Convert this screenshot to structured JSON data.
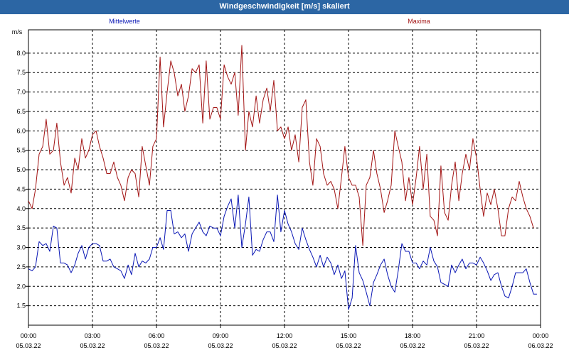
{
  "window": {
    "title": "Windgeschwindigkeit [m/s] skaliert"
  },
  "colors": {
    "titlebar": "#2c66a4",
    "mean_series": "#0a17b5",
    "max_series": "#a31515"
  },
  "chart_data": {
    "type": "line",
    "title": "Windgeschwindigkeit [m/s] skaliert",
    "ylabel": "m/s",
    "xlabel": "",
    "ylim": [
      1.0,
      8.6
    ],
    "yticks": [
      1.5,
      2.0,
      2.5,
      3.0,
      3.5,
      4.0,
      4.5,
      5.0,
      5.5,
      6.0,
      6.5,
      7.0,
      7.5,
      8.0
    ],
    "ytick_labels": [
      "1.5",
      "2.0",
      "2.5",
      "3.0",
      "3.5",
      "4.0",
      "4.5",
      "5.0",
      "5.5",
      "6.0",
      "6.5",
      "7.0",
      "7.5",
      "8.0"
    ],
    "xlim": [
      "05.03.22 00:00",
      "06.03.22 00:00"
    ],
    "xticks": [
      {
        "time": "00:00",
        "date": "05.03.22"
      },
      {
        "time": "03:00",
        "date": "05.03.22"
      },
      {
        "time": "06:00",
        "date": "05.03.22"
      },
      {
        "time": "09:00",
        "date": "05.03.22"
      },
      {
        "time": "12:00",
        "date": "05.03.22"
      },
      {
        "time": "15:00",
        "date": "05.03.22"
      },
      {
        "time": "18:00",
        "date": "05.03.22"
      },
      {
        "time": "21:00",
        "date": "05.03.22"
      },
      {
        "time": "00:00",
        "date": "06.03.22"
      }
    ],
    "grid": true,
    "x_hours": [
      0.0,
      0.17,
      0.33,
      0.5,
      0.67,
      0.83,
      1.0,
      1.17,
      1.33,
      1.5,
      1.67,
      1.83,
      2.0,
      2.17,
      2.33,
      2.5,
      2.67,
      2.83,
      3.0,
      3.17,
      3.33,
      3.5,
      3.67,
      3.83,
      4.0,
      4.17,
      4.33,
      4.5,
      4.67,
      4.83,
      5.0,
      5.17,
      5.33,
      5.5,
      5.67,
      5.83,
      6.0,
      6.17,
      6.33,
      6.5,
      6.67,
      6.83,
      7.0,
      7.17,
      7.33,
      7.5,
      7.67,
      7.83,
      8.0,
      8.17,
      8.33,
      8.5,
      8.67,
      8.83,
      9.0,
      9.17,
      9.33,
      9.5,
      9.67,
      9.83,
      10.0,
      10.17,
      10.33,
      10.5,
      10.67,
      10.83,
      11.0,
      11.17,
      11.33,
      11.5,
      11.67,
      11.83,
      12.0,
      12.17,
      12.33,
      12.5,
      12.67,
      12.83,
      13.0,
      13.17,
      13.33,
      13.5,
      13.67,
      13.83,
      14.0,
      14.17,
      14.33,
      14.5,
      14.67,
      14.83,
      15.0,
      15.17,
      15.33,
      15.5,
      15.67,
      15.83,
      16.0,
      16.17,
      16.33,
      16.5,
      16.67,
      16.83,
      17.0,
      17.17,
      17.33,
      17.5,
      17.67,
      17.83,
      18.0,
      18.17,
      18.33,
      18.5,
      18.67,
      18.83,
      19.0,
      19.17,
      19.33,
      19.5,
      19.67,
      19.83,
      20.0,
      20.17,
      20.33,
      20.5,
      20.67,
      20.83,
      21.0,
      21.17,
      21.33,
      21.5,
      21.67,
      21.83,
      22.0,
      22.17,
      22.33,
      22.5,
      22.67,
      22.83,
      23.0,
      23.17,
      23.33,
      23.5,
      23.67,
      23.83,
      24.0
    ],
    "series": [
      {
        "name": "Mittelwerte",
        "color": "#0a17b5",
        "values": [
          2.45,
          2.4,
          2.5,
          3.15,
          3.05,
          3.1,
          2.9,
          3.55,
          3.5,
          2.6,
          2.6,
          2.55,
          2.35,
          2.55,
          2.85,
          3.05,
          2.7,
          3.0,
          3.1,
          3.1,
          3.05,
          2.65,
          2.65,
          2.7,
          2.5,
          2.45,
          2.4,
          2.2,
          2.55,
          2.3,
          2.85,
          2.5,
          2.65,
          2.6,
          2.7,
          3.0,
          3.0,
          3.25,
          2.95,
          3.95,
          3.95,
          3.35,
          3.4,
          3.25,
          3.35,
          2.9,
          3.35,
          3.5,
          3.65,
          3.4,
          3.3,
          3.55,
          3.5,
          3.5,
          3.3,
          3.8,
          4.05,
          4.25,
          3.5,
          4.35,
          3.0,
          3.6,
          4.3,
          2.8,
          2.95,
          2.9,
          3.2,
          3.4,
          3.4,
          3.15,
          4.35,
          3.4,
          3.95,
          3.6,
          3.4,
          3.1,
          2.95,
          3.5,
          3.2,
          2.95,
          2.75,
          2.5,
          2.8,
          2.5,
          2.75,
          2.6,
          2.3,
          2.55,
          2.2,
          2.4,
          1.4,
          1.7,
          3.05,
          2.35,
          2.15,
          1.85,
          1.5,
          2.1,
          2.3,
          2.55,
          2.7,
          2.3,
          2.0,
          1.85,
          2.4,
          3.1,
          2.9,
          2.9,
          2.6,
          2.6,
          2.45,
          2.65,
          2.55,
          3.0,
          2.65,
          2.5,
          2.1,
          2.05,
          2.0,
          2.55,
          2.35,
          2.55,
          2.7,
          2.45,
          2.6,
          2.6,
          2.55,
          2.75,
          2.6,
          2.4,
          2.15,
          2.3,
          2.35,
          2.0,
          1.75,
          1.7,
          2.0,
          2.35,
          2.35,
          2.35,
          2.45,
          2.1,
          1.8,
          1.8
        ]
      },
      {
        "name": "Maxima",
        "color": "#a31515",
        "values": [
          4.2,
          4.0,
          4.5,
          5.4,
          5.6,
          6.3,
          5.4,
          5.5,
          6.2,
          5.2,
          4.6,
          4.8,
          4.4,
          5.3,
          5.0,
          5.8,
          5.3,
          5.5,
          5.9,
          6.0,
          5.6,
          5.3,
          4.9,
          4.9,
          5.2,
          4.8,
          4.6,
          4.2,
          4.8,
          5.0,
          4.9,
          4.3,
          5.6,
          5.1,
          4.6,
          5.6,
          5.8,
          7.9,
          6.1,
          7.0,
          7.8,
          7.5,
          6.9,
          7.2,
          6.5,
          6.9,
          7.6,
          7.5,
          7.7,
          6.2,
          7.8,
          6.3,
          6.6,
          6.6,
          6.3,
          7.7,
          7.4,
          7.2,
          7.5,
          6.4,
          8.2,
          5.5,
          6.5,
          6.1,
          6.9,
          6.2,
          6.8,
          7.1,
          6.5,
          7.3,
          6.0,
          6.1,
          5.8,
          6.1,
          5.5,
          5.9,
          5.2,
          6.6,
          6.8,
          5.2,
          4.6,
          5.8,
          5.6,
          4.9,
          4.6,
          4.7,
          4.5,
          4.0,
          4.8,
          5.6,
          4.8,
          4.6,
          4.6,
          4.3,
          3.05,
          4.6,
          4.8,
          5.5,
          4.9,
          4.5,
          3.9,
          4.2,
          4.6,
          6.0,
          5.6,
          5.2,
          4.2,
          4.8,
          4.1,
          4.8,
          5.6,
          4.5,
          5.4,
          3.8,
          3.7,
          3.3,
          5.1,
          3.9,
          3.7,
          4.6,
          5.2,
          4.2,
          4.9,
          5.4,
          5.0,
          5.8,
          5.3,
          4.5,
          3.8,
          4.4,
          4.1,
          4.5,
          4.0,
          3.3,
          3.3,
          4.0,
          4.3,
          4.2,
          4.7,
          4.3,
          4.0,
          3.8,
          3.5
        ]
      }
    ],
    "legend": {
      "position": "top",
      "layout": "two labels above plot, left series centered at left, right series centered at right"
    }
  }
}
